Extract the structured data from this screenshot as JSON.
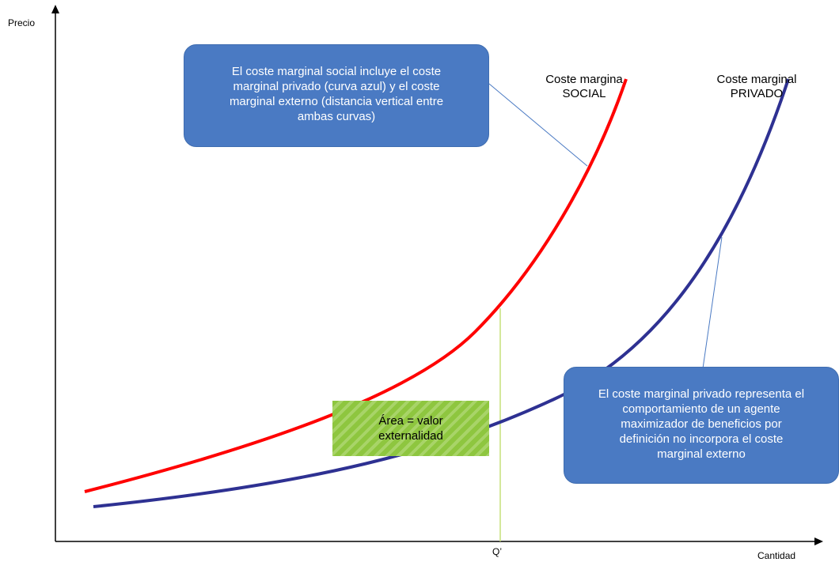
{
  "axes": {
    "y_label": "Precio",
    "x_label": "Cantidad",
    "q_label": "Q’"
  },
  "curves": {
    "social": {
      "line1": "Coste margina",
      "line2": "SOCIAL",
      "color": "#ff0000"
    },
    "private": {
      "line1": "Coste marginal",
      "line2": "PRIVADO",
      "color": "#2e3192"
    }
  },
  "callouts": {
    "social": [
      "El coste marginal social incluye el coste",
      "marginal privado (curva azul) y el coste",
      "marginal externo (distancia vertical entre",
      "ambas curvas)"
    ],
    "private": [
      "El coste marginal privado representa el",
      "comportamiento de un agente",
      "maximizador de beneficios  por",
      "definición  no incorpora el coste",
      "marginal externo"
    ],
    "color": "#4a7ac3"
  },
  "area_box": {
    "line1": "Área = valor",
    "line2": "externalidad"
  }
}
